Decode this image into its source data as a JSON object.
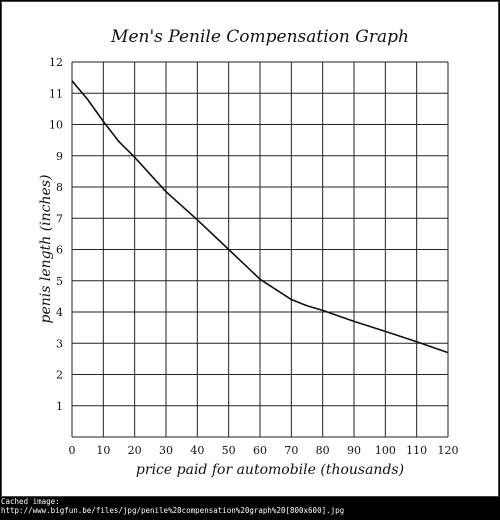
{
  "chart_data": {
    "type": "line",
    "title": "Men's Penile Compensation Graph",
    "xlabel": "price paid for automobile (thousands)",
    "ylabel": "penis length (inches)",
    "xlim": [
      0,
      120
    ],
    "ylim": [
      0,
      12
    ],
    "xticks": [
      "0",
      "10",
      "20",
      "30",
      "40",
      "50",
      "60",
      "70",
      "80",
      "90",
      "100",
      "110",
      "120"
    ],
    "yticks": [
      "1",
      "2",
      "3",
      "4",
      "5",
      "6",
      "7",
      "8",
      "9",
      "10",
      "11",
      "12"
    ],
    "grid": true,
    "colors": {
      "line": "#111111",
      "grid": "#222222",
      "background": "#ffffff"
    },
    "series": [
      {
        "x": [
          0,
          5,
          10,
          15,
          20,
          30,
          40,
          50,
          60,
          70,
          75,
          80,
          90,
          100,
          110,
          120
        ],
        "y": [
          11.4,
          10.8,
          10.1,
          9.45,
          8.95,
          7.85,
          6.95,
          6.0,
          5.05,
          4.4,
          4.2,
          4.05,
          3.7,
          3.38,
          3.05,
          2.7
        ]
      }
    ]
  },
  "footer": {
    "line1": "Cached image:",
    "line2": "http://www.bigfun.be/files/jpg/penile%20compensation%20graph%20[800x600].jpg"
  }
}
